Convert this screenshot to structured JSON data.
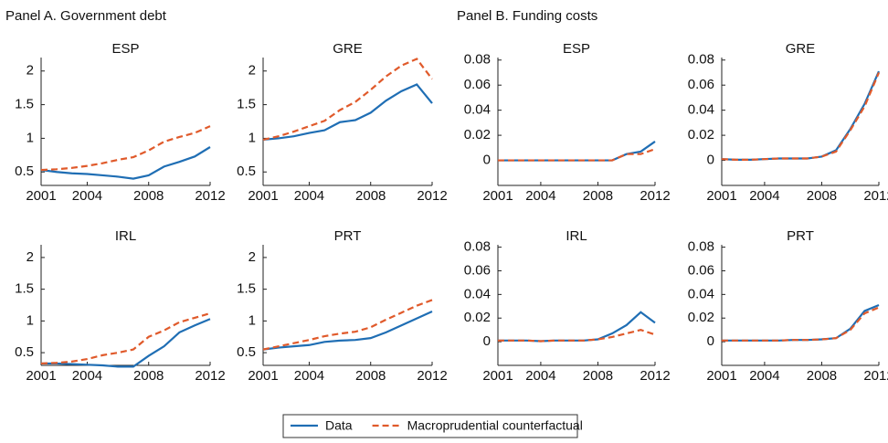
{
  "panels": [
    {
      "title": "Panel A. Government debt"
    },
    {
      "title": "Panel B. Funding costs"
    }
  ],
  "legend": [
    {
      "name": "Data",
      "color": "#1f6eb4",
      "dash": false
    },
    {
      "name": "Macroprudential counterfactual",
      "color": "#e05a2b",
      "dash": true
    }
  ],
  "chart_data": [
    {
      "type": "line",
      "title": "ESP",
      "x": [
        2001,
        2002,
        2003,
        2004,
        2005,
        2006,
        2007,
        2008,
        2009,
        2010,
        2011,
        2012
      ],
      "xlim": [
        2001,
        2012
      ],
      "xticks": [
        2001,
        2004,
        2008,
        2012
      ],
      "ylim": [
        0.3,
        2.2
      ],
      "yticks": [
        0.5,
        1,
        1.5,
        2
      ],
      "series": [
        {
          "color": "#1f6eb4",
          "dash": false,
          "values": [
            0.53,
            0.5,
            0.48,
            0.47,
            0.45,
            0.43,
            0.4,
            0.45,
            0.58,
            0.65,
            0.73,
            0.87
          ]
        },
        {
          "color": "#e05a2b",
          "dash": true,
          "values": [
            0.53,
            0.54,
            0.56,
            0.59,
            0.63,
            0.68,
            0.72,
            0.82,
            0.95,
            1.02,
            1.08,
            1.18
          ]
        }
      ]
    },
    {
      "type": "line",
      "title": "GRE",
      "x": [
        2001,
        2002,
        2003,
        2004,
        2005,
        2006,
        2007,
        2008,
        2009,
        2010,
        2011,
        2012
      ],
      "xlim": [
        2001,
        2012
      ],
      "xticks": [
        2001,
        2004,
        2008,
        2012
      ],
      "ylim": [
        0.3,
        2.2
      ],
      "yticks": [
        0.5,
        1,
        1.5,
        2
      ],
      "series": [
        {
          "color": "#1f6eb4",
          "dash": false,
          "values": [
            0.98,
            1.0,
            1.03,
            1.08,
            1.12,
            1.24,
            1.27,
            1.38,
            1.56,
            1.7,
            1.8,
            1.52
          ]
        },
        {
          "color": "#e05a2b",
          "dash": true,
          "values": [
            0.98,
            1.03,
            1.1,
            1.18,
            1.26,
            1.42,
            1.54,
            1.72,
            1.92,
            2.08,
            2.18,
            1.88
          ]
        }
      ]
    },
    {
      "type": "line",
      "title": "IRL",
      "x": [
        2001,
        2002,
        2003,
        2004,
        2005,
        2006,
        2007,
        2008,
        2009,
        2010,
        2011,
        2012
      ],
      "xlim": [
        2001,
        2012
      ],
      "xticks": [
        2001,
        2004,
        2008,
        2012
      ],
      "ylim": [
        0.3,
        2.2
      ],
      "yticks": [
        0.5,
        1,
        1.5,
        2
      ],
      "series": [
        {
          "color": "#1f6eb4",
          "dash": false,
          "values": [
            0.33,
            0.33,
            0.32,
            0.31,
            0.3,
            0.28,
            0.28,
            0.45,
            0.6,
            0.82,
            0.93,
            1.03
          ]
        },
        {
          "color": "#e05a2b",
          "dash": true,
          "values": [
            0.33,
            0.34,
            0.36,
            0.4,
            0.46,
            0.5,
            0.55,
            0.75,
            0.85,
            0.98,
            1.05,
            1.12
          ]
        }
      ]
    },
    {
      "type": "line",
      "title": "PRT",
      "x": [
        2001,
        2002,
        2003,
        2004,
        2005,
        2006,
        2007,
        2008,
        2009,
        2010,
        2011,
        2012
      ],
      "xlim": [
        2001,
        2012
      ],
      "xticks": [
        2001,
        2004,
        2008,
        2012
      ],
      "ylim": [
        0.3,
        2.2
      ],
      "yticks": [
        0.5,
        1,
        1.5,
        2
      ],
      "series": [
        {
          "color": "#1f6eb4",
          "dash": false,
          "values": [
            0.55,
            0.58,
            0.6,
            0.62,
            0.67,
            0.69,
            0.7,
            0.73,
            0.82,
            0.93,
            1.04,
            1.15
          ]
        },
        {
          "color": "#e05a2b",
          "dash": true,
          "values": [
            0.55,
            0.6,
            0.65,
            0.7,
            0.76,
            0.8,
            0.83,
            0.9,
            1.02,
            1.13,
            1.24,
            1.33
          ]
        }
      ]
    },
    {
      "type": "line",
      "title": "ESP",
      "x": [
        2001,
        2002,
        2003,
        2004,
        2005,
        2006,
        2007,
        2008,
        2009,
        2010,
        2011,
        2012
      ],
      "xlim": [
        2001,
        2012
      ],
      "xticks": [
        2001,
        2004,
        2008,
        2012
      ],
      "ylim": [
        -0.02,
        0.082
      ],
      "yticks": [
        0,
        0.02,
        0.04,
        0.06,
        0.08
      ],
      "series": [
        {
          "color": "#1f6eb4",
          "dash": false,
          "values": [
            0,
            0,
            0,
            0,
            0,
            0,
            0,
            0,
            0,
            0.005,
            0.007,
            0.015
          ]
        },
        {
          "color": "#e05a2b",
          "dash": true,
          "values": [
            0,
            0,
            0,
            0,
            0,
            0,
            0,
            0,
            0,
            0.005,
            0.005,
            0.009
          ]
        }
      ]
    },
    {
      "type": "line",
      "title": "GRE",
      "x": [
        2001,
        2002,
        2003,
        2004,
        2005,
        2006,
        2007,
        2008,
        2009,
        2010,
        2011,
        2012
      ],
      "xlim": [
        2001,
        2012
      ],
      "xticks": [
        2001,
        2004,
        2008,
        2012
      ],
      "ylim": [
        -0.02,
        0.082
      ],
      "yticks": [
        0,
        0.02,
        0.04,
        0.06,
        0.08
      ],
      "series": [
        {
          "color": "#1f6eb4",
          "dash": false,
          "values": [
            0.001,
            0.0005,
            0.0005,
            0.001,
            0.0015,
            0.0015,
            0.0015,
            0.003,
            0.008,
            0.025,
            0.045,
            0.071
          ]
        },
        {
          "color": "#e05a2b",
          "dash": true,
          "values": [
            0.001,
            0.0005,
            0.0005,
            0.001,
            0.0015,
            0.0015,
            0.0015,
            0.003,
            0.007,
            0.024,
            0.043,
            0.07
          ]
        }
      ]
    },
    {
      "type": "line",
      "title": "IRL",
      "x": [
        2001,
        2002,
        2003,
        2004,
        2005,
        2006,
        2007,
        2008,
        2009,
        2010,
        2011,
        2012
      ],
      "xlim": [
        2001,
        2012
      ],
      "xticks": [
        2001,
        2004,
        2008,
        2012
      ],
      "ylim": [
        -0.02,
        0.082
      ],
      "yticks": [
        0,
        0.02,
        0.04,
        0.06,
        0.08
      ],
      "series": [
        {
          "color": "#1f6eb4",
          "dash": false,
          "values": [
            0.001,
            0.001,
            0.001,
            0.0005,
            0.001,
            0.001,
            0.001,
            0.002,
            0.007,
            0.014,
            0.025,
            0.016
          ]
        },
        {
          "color": "#e05a2b",
          "dash": true,
          "values": [
            0.001,
            0.001,
            0.001,
            0.0005,
            0.001,
            0.001,
            0.001,
            0.002,
            0.004,
            0.007,
            0.01,
            0.006
          ]
        }
      ]
    },
    {
      "type": "line",
      "title": "PRT",
      "x": [
        2001,
        2002,
        2003,
        2004,
        2005,
        2006,
        2007,
        2008,
        2009,
        2010,
        2011,
        2012
      ],
      "xlim": [
        2001,
        2012
      ],
      "xticks": [
        2001,
        2004,
        2008,
        2012
      ],
      "ylim": [
        -0.02,
        0.082
      ],
      "yticks": [
        0,
        0.02,
        0.04,
        0.06,
        0.08
      ],
      "series": [
        {
          "color": "#1f6eb4",
          "dash": false,
          "values": [
            0.001,
            0.001,
            0.001,
            0.001,
            0.001,
            0.0015,
            0.0015,
            0.002,
            0.003,
            0.011,
            0.026,
            0.031
          ]
        },
        {
          "color": "#e05a2b",
          "dash": true,
          "values": [
            0.001,
            0.001,
            0.001,
            0.001,
            0.001,
            0.0015,
            0.0015,
            0.002,
            0.003,
            0.01,
            0.024,
            0.029
          ]
        }
      ]
    }
  ]
}
